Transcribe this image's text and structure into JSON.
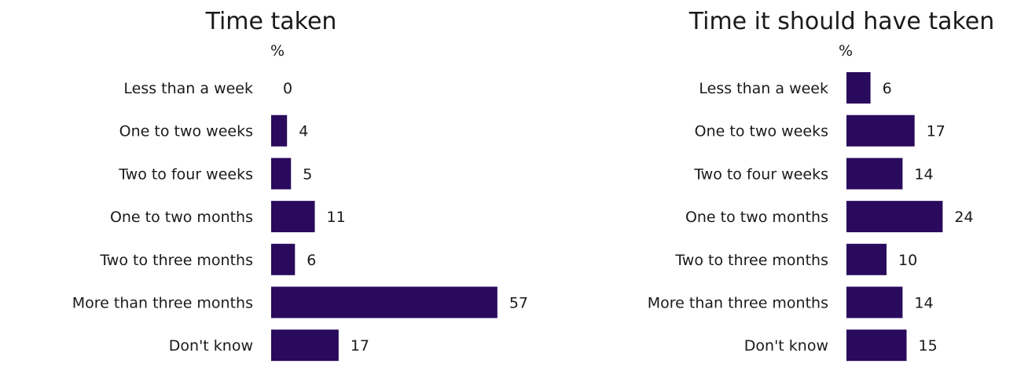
{
  "colors": {
    "bar": "#290a5c",
    "text": "#1a1a1a",
    "background": "#ffffff"
  },
  "chart_data": [
    {
      "type": "bar",
      "orientation": "horizontal",
      "title": "Time taken",
      "unit": "%",
      "categories": [
        "Less than a week",
        "One to two weeks",
        "Two to four weeks",
        "One to two months",
        "Two to three months",
        "More than three months",
        "Don't know"
      ],
      "values": [
        0,
        4,
        5,
        11,
        6,
        57,
        17
      ],
      "data_labels": [
        "0",
        "4",
        "5",
        "11",
        "6",
        "57",
        "17"
      ],
      "xlim": [
        0,
        60
      ],
      "grid": false,
      "legend": "none"
    },
    {
      "type": "bar",
      "orientation": "horizontal",
      "title": "Time it should have taken",
      "unit": "%",
      "categories": [
        "Less than a week",
        "One to two weeks",
        "Two to four weeks",
        "One to two months",
        "Two to three months",
        "More than three months",
        "Don't know"
      ],
      "values": [
        6,
        17,
        14,
        24,
        10,
        14,
        15
      ],
      "data_labels": [
        "6",
        "17",
        "14",
        "24",
        "10",
        "14",
        "15"
      ],
      "xlim": [
        0,
        25
      ],
      "grid": false,
      "legend": "none"
    }
  ]
}
